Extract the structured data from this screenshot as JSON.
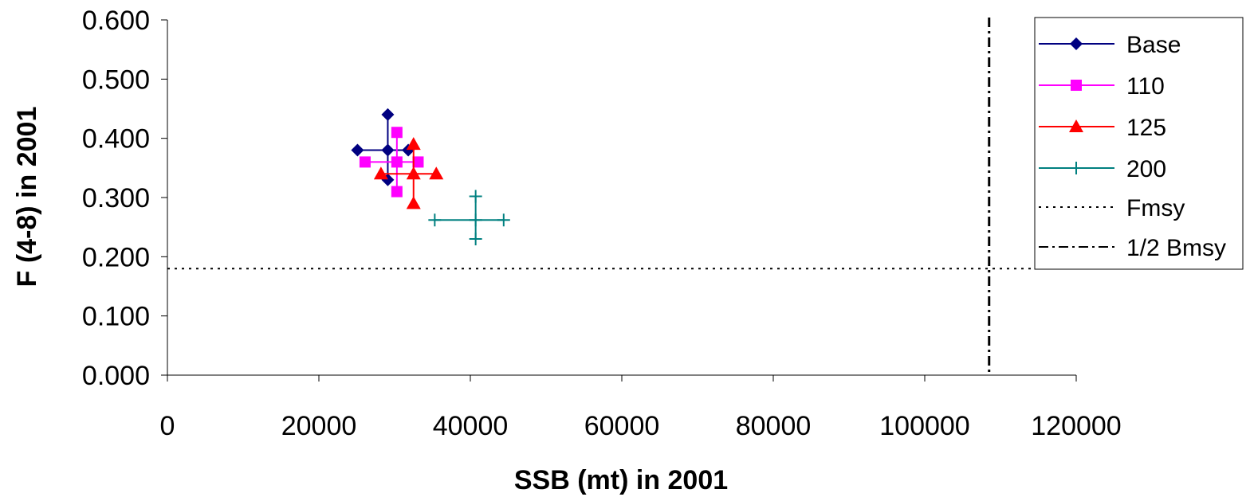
{
  "chart_data": {
    "type": "scatter",
    "title": "",
    "xlabel": "SSB (mt) in 2001",
    "ylabel": "F (4-8) in 2001",
    "xlim": [
      0,
      120000
    ],
    "ylim": [
      0,
      0.6
    ],
    "x_ticks": [
      "0",
      "20000",
      "40000",
      "60000",
      "80000",
      "100000",
      "120000"
    ],
    "y_ticks": [
      "0.000",
      "0.100",
      "0.200",
      "0.300",
      "0.400",
      "0.500",
      "0.600"
    ],
    "grid": false,
    "legend_position": "right",
    "series": [
      {
        "name": "Base",
        "color": "#000080",
        "marker": "diamond",
        "center": [
          29100,
          0.38
        ],
        "x_range": [
          25100,
          31800
        ],
        "y_range": [
          0.33,
          0.44
        ]
      },
      {
        "name": "110",
        "color": "#ff00ff",
        "marker": "square",
        "center": [
          30300,
          0.36
        ],
        "x_range": [
          26100,
          33100
        ],
        "y_range": [
          0.31,
          0.41
        ]
      },
      {
        "name": "125",
        "color": "#ff0000",
        "marker": "triangle",
        "center": [
          32500,
          0.34
        ],
        "x_range": [
          28200,
          35500
        ],
        "y_range": [
          0.29,
          0.39
        ]
      },
      {
        "name": "200",
        "color": "#008080",
        "marker": "plus",
        "center": [
          40700,
          0.262
        ],
        "x_range": [
          35300,
          44400
        ],
        "y_range": [
          0.23,
          0.302
        ]
      }
    ],
    "reference_lines": [
      {
        "name": "Fmsy",
        "orientation": "horizontal",
        "value": 0.18,
        "style": "dotted"
      },
      {
        "name": "1/2 Bmsy",
        "orientation": "vertical",
        "value": 108500,
        "style": "dash-dot"
      }
    ]
  }
}
